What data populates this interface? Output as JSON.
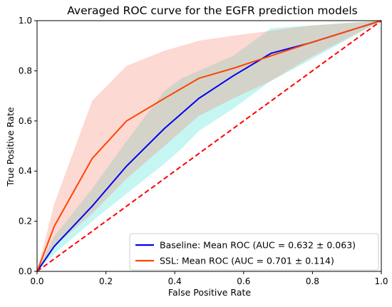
{
  "chart_data": {
    "type": "line",
    "title": "Averaged ROC curve for the EGFR prediction models",
    "xlabel": "False Positive Rate",
    "ylabel": "True Positive Rate",
    "xlim": [
      0.0,
      1.0
    ],
    "ylim": [
      0.0,
      1.0
    ],
    "xticks": [
      "0.0",
      "0.2",
      "0.4",
      "0.6",
      "0.8",
      "1.0"
    ],
    "yticks": [
      "0.0",
      "0.2",
      "0.4",
      "0.6",
      "0.8",
      "1.0"
    ],
    "grid": false,
    "legend_position": "bottom-right",
    "series": [
      {
        "name": "Baseline: Mean ROC (AUC = 0.632 ± 0.063)",
        "color": "#0000ee",
        "band_color": "#40e0d0",
        "x": [
          0.0,
          0.05,
          0.16,
          0.26,
          0.37,
          0.42,
          0.47,
          0.57,
          0.68,
          0.79,
          1.0
        ],
        "y": [
          0.0,
          0.1,
          0.26,
          0.42,
          0.57,
          0.63,
          0.69,
          0.78,
          0.87,
          0.91,
          1.0
        ],
        "upper": [
          0.0,
          0.14,
          0.33,
          0.52,
          0.72,
          0.77,
          0.8,
          0.86,
          0.97,
          0.98,
          1.0
        ],
        "lower": [
          0.0,
          0.07,
          0.2,
          0.31,
          0.43,
          0.49,
          0.56,
          0.65,
          0.76,
          0.84,
          1.0
        ]
      },
      {
        "name": "SSL: Mean ROC (AUC = 0.701 ± 0.114)",
        "color": "#ff4500",
        "band_color": "#fa8072",
        "x": [
          0.0,
          0.05,
          0.16,
          0.26,
          0.37,
          0.47,
          0.57,
          0.68,
          0.79,
          1.0
        ],
        "y": [
          0.0,
          0.18,
          0.45,
          0.6,
          0.69,
          0.77,
          0.81,
          0.86,
          0.91,
          1.0
        ],
        "upper": [
          0.0,
          0.27,
          0.68,
          0.82,
          0.88,
          0.92,
          0.94,
          0.96,
          0.98,
          1.0
        ],
        "lower": [
          0.0,
          0.1,
          0.23,
          0.37,
          0.5,
          0.62,
          0.69,
          0.76,
          0.85,
          1.0
        ]
      },
      {
        "name": "",
        "style": "dashed",
        "color": "#ff0000",
        "x": [
          0.0,
          1.0
        ],
        "y": [
          0.0,
          1.0
        ]
      }
    ]
  }
}
